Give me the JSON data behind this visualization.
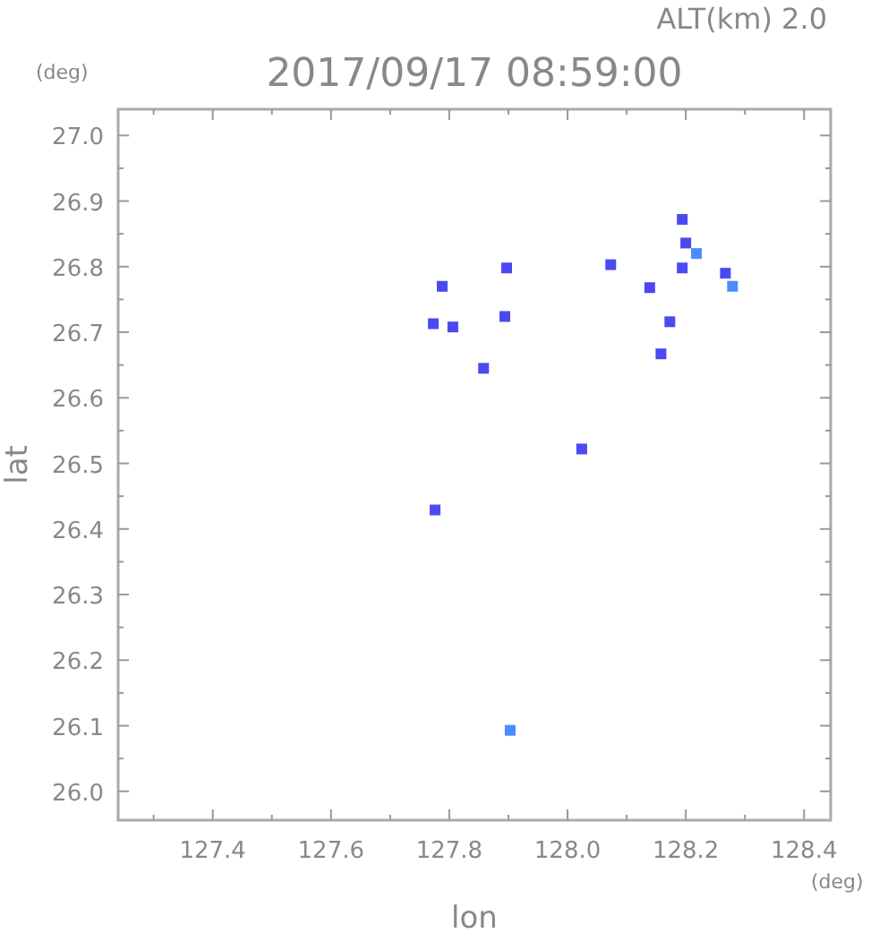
{
  "chart_data": {
    "type": "scatter",
    "title": "2017/09/17 08:59:00",
    "subtitle": "ALT(km) 2.0",
    "xlabel": "lon",
    "ylabel": "lat",
    "annotations": [
      "(deg)",
      "(deg)"
    ],
    "xlim": [
      127.24,
      128.445
    ],
    "ylim": [
      25.956,
      27.04
    ],
    "xticks": [
      {
        "value": 127.3,
        "label": null
      },
      127.4,
      {
        "value": 127.5,
        "label": null
      },
      127.6,
      {
        "value": 127.7,
        "label": null
      },
      127.8,
      {
        "value": 127.9,
        "label": null
      },
      {
        "value": 128,
        "label": "128.0"
      },
      {
        "value": 128.1,
        "label": null
      },
      128.2,
      {
        "value": 128.3,
        "label": null
      },
      128.4
    ],
    "yticks": [
      {
        "value": 26,
        "label": "26.0"
      },
      {
        "value": 26.05,
        "label": null
      },
      26.1,
      {
        "value": 26.15,
        "label": null
      },
      26.2,
      {
        "value": 26.25,
        "label": null
      },
      26.3,
      {
        "value": 26.35,
        "label": null
      },
      26.4,
      {
        "value": 26.45,
        "label": null
      },
      26.5,
      {
        "value": 26.55,
        "label": null
      },
      26.6,
      {
        "value": 26.65,
        "label": null
      },
      26.7,
      {
        "value": 26.75,
        "label": null
      },
      26.8,
      {
        "value": 26.85,
        "label": null
      },
      26.9,
      {
        "value": 26.95,
        "label": null
      },
      {
        "value": 27,
        "label": "27.0"
      }
    ],
    "marker": "square",
    "grid": false,
    "series": [
      {
        "color": "#4a4af0",
        "x": [
          127.788,
          127.806,
          127.773,
          127.858,
          127.897,
          127.894,
          128.024,
          128.073,
          128.139,
          128.173,
          128.158,
          128.194,
          128.2,
          128.194,
          128.267,
          127.776
        ],
        "values": [
          26.77,
          26.708,
          26.713,
          26.645,
          26.798,
          26.724,
          26.522,
          26.803,
          26.768,
          26.716,
          26.667,
          26.872,
          26.836,
          26.798,
          26.79,
          26.429
        ]
      },
      {
        "color": "#4a8cff",
        "x": [
          128.218,
          128.279,
          127.903
        ],
        "values": [
          26.82,
          26.77,
          26.093
        ]
      }
    ]
  }
}
